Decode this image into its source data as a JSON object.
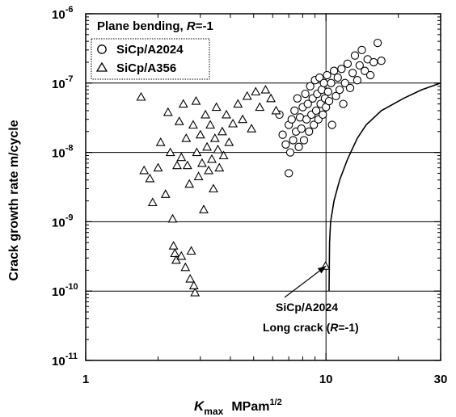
{
  "chart_data": {
    "type": "scatter",
    "legend_title_prefix": "Plane bending, ",
    "legend_title_var": "R",
    "legend_title_suffix": "=-1",
    "legend_placement": "top-left",
    "xlabel_var": "K",
    "xlabel_sub": "max",
    "xlabel_units": "MPam",
    "xlabel_exp": "1/2",
    "ylabel": "Crack growth rate  m/cycle",
    "x_scale": "log",
    "y_scale": "log",
    "xlim": [
      1,
      30
    ],
    "ylim": [
      1e-11,
      1e-06
    ],
    "x_ticks": [
      {
        "value": 1,
        "label": "1"
      },
      {
        "value": 10,
        "label": "10"
      },
      {
        "value": 30,
        "label": "30"
      }
    ],
    "y_ticks": [
      {
        "value": 1e-11,
        "base": "10",
        "exp": "-11"
      },
      {
        "value": 1e-10,
        "base": "10",
        "exp": "-10"
      },
      {
        "value": 1e-09,
        "base": "10",
        "exp": "-9"
      },
      {
        "value": 1e-08,
        "base": "10",
        "exp": "-8"
      },
      {
        "value": 1e-07,
        "base": "10",
        "exp": "-7"
      },
      {
        "value": 1e-06,
        "base": "10",
        "exp": "-6"
      }
    ],
    "grid": {
      "horizontal_at": [
        1e-10,
        1e-09,
        1e-08,
        1e-07
      ],
      "vertical_at": [
        10
      ]
    },
    "series": [
      {
        "name": "SiCp/A2024",
        "marker": "circle",
        "points": [
          [
            6.4,
            3.5e-08
          ],
          [
            6.6,
            1.8e-08
          ],
          [
            6.8,
            1.3e-08
          ],
          [
            7.0,
            2.5e-08
          ],
          [
            7.0,
            5e-09
          ],
          [
            7.1,
            1e-08
          ],
          [
            7.2,
            3e-08
          ],
          [
            7.3,
            1.5e-08
          ],
          [
            7.4,
            4e-08
          ],
          [
            7.5,
            2e-08
          ],
          [
            7.6,
            6e-08
          ],
          [
            7.7,
            1.2e-08
          ],
          [
            7.8,
            3.2e-08
          ],
          [
            7.9,
            2.2e-08
          ],
          [
            8.0,
            4.5e-08
          ],
          [
            8.1,
            1.5e-08
          ],
          [
            8.2,
            7e-08
          ],
          [
            8.3,
            3e-08
          ],
          [
            8.4,
            5e-08
          ],
          [
            8.5,
            2e-08
          ],
          [
            8.6,
            9e-08
          ],
          [
            8.7,
            3.5e-08
          ],
          [
            8.8,
            6e-08
          ],
          [
            8.9,
            2.5e-08
          ],
          [
            9.0,
            1.1e-07
          ],
          [
            9.1,
            4e-08
          ],
          [
            9.2,
            7e-08
          ],
          [
            9.3,
            3e-08
          ],
          [
            9.4,
            1.2e-07
          ],
          [
            9.5,
            5e-08
          ],
          [
            9.6,
            8e-08
          ],
          [
            9.7,
            3.5e-08
          ],
          [
            9.8,
            1e-07
          ],
          [
            9.9,
            6e-08
          ],
          [
            10.0,
            4.5e-08
          ],
          [
            10.1,
            1.3e-07
          ],
          [
            10.2,
            7.5e-08
          ],
          [
            10.3,
            5.5e-08
          ],
          [
            10.5,
            1e-07
          ],
          [
            10.6,
            2.5e-08
          ],
          [
            10.8,
            1.5e-07
          ],
          [
            11.0,
            6.5e-08
          ],
          [
            11.2,
            1.2e-07
          ],
          [
            11.4,
            8e-08
          ],
          [
            11.6,
            1.6e-07
          ],
          [
            11.8,
            5e-08
          ],
          [
            12.0,
            1e-07
          ],
          [
            12.3,
            1.9e-07
          ],
          [
            12.6,
            8.5e-08
          ],
          [
            12.9,
            1.4e-07
          ],
          [
            13.2,
            2.5e-07
          ],
          [
            13.5,
            1.1e-07
          ],
          [
            13.8,
            1.8e-07
          ],
          [
            14.1,
            3e-07
          ],
          [
            14.5,
            1.5e-07
          ],
          [
            14.9,
            2.2e-07
          ],
          [
            15.3,
            1.3e-07
          ],
          [
            15.8,
            2e-07
          ],
          [
            16.4,
            3.8e-07
          ],
          [
            17.0,
            2.1e-07
          ]
        ]
      },
      {
        "name": "SiCp/A356",
        "marker": "triangle",
        "points": [
          [
            1.7,
            6.3e-08
          ],
          [
            1.75,
            5.5e-09
          ],
          [
            1.85,
            4.2e-09
          ],
          [
            1.9,
            1.9e-09
          ],
          [
            2.0,
            6e-09
          ],
          [
            2.05,
            1.4e-08
          ],
          [
            2.15,
            2.5e-09
          ],
          [
            2.2,
            3.8e-08
          ],
          [
            2.25,
            1e-08
          ],
          [
            2.3,
            1.1e-09
          ],
          [
            2.32,
            4.5e-10
          ],
          [
            2.35,
            3.5e-10
          ],
          [
            2.38,
            2.8e-10
          ],
          [
            2.4,
            6.5e-09
          ],
          [
            2.45,
            2.8e-08
          ],
          [
            2.5,
            3.2e-10
          ],
          [
            2.5,
            8.5e-09
          ],
          [
            2.55,
            5e-08
          ],
          [
            2.6,
            2.2e-10
          ],
          [
            2.62,
            1.6e-08
          ],
          [
            2.65,
            6.5e-09
          ],
          [
            2.7,
            3.5e-09
          ],
          [
            2.72,
            1.5e-10
          ],
          [
            2.75,
            3.8e-10
          ],
          [
            2.8,
            2.5e-08
          ],
          [
            2.82,
            1.2e-10
          ],
          [
            2.85,
            9.5e-11
          ],
          [
            2.88,
            5.5e-08
          ],
          [
            2.9,
            1e-08
          ],
          [
            2.95,
            4.5e-09
          ],
          [
            3.0,
            1.8e-08
          ],
          [
            3.05,
            7e-09
          ],
          [
            3.1,
            1.5e-09
          ],
          [
            3.15,
            3.5e-08
          ],
          [
            3.2,
            1.2e-08
          ],
          [
            3.25,
            5.5e-09
          ],
          [
            3.3,
            2.5e-08
          ],
          [
            3.35,
            8e-09
          ],
          [
            3.4,
            3e-09
          ],
          [
            3.45,
            1.6e-08
          ],
          [
            3.5,
            4.5e-08
          ],
          [
            3.55,
            1.1e-08
          ],
          [
            3.6,
            6e-09
          ],
          [
            3.7,
            2e-08
          ],
          [
            3.75,
            9e-09
          ],
          [
            3.85,
            3.5e-08
          ],
          [
            3.95,
            1.4e-08
          ],
          [
            4.1,
            2.6e-08
          ],
          [
            4.3,
            5e-08
          ],
          [
            4.5,
            3e-08
          ],
          [
            4.7,
            6.5e-08
          ],
          [
            4.9,
            2.2e-08
          ],
          [
            5.1,
            7.5e-08
          ],
          [
            5.3,
            4.5e-08
          ],
          [
            5.6,
            8e-08
          ],
          [
            5.9,
            6e-08
          ],
          [
            6.2,
            4e-08
          ],
          [
            9.95,
            2.3e-10
          ]
        ]
      },
      {
        "name": "SiCp/A2024 Long crack",
        "marker": "line",
        "points": [
          [
            10.3,
            1e-10
          ],
          [
            10.35,
            5e-10
          ],
          [
            10.45,
            1e-09
          ],
          [
            10.8,
            2e-09
          ],
          [
            11.4,
            4e-09
          ],
          [
            12.3,
            8e-09
          ],
          [
            13.5,
            1.6e-08
          ],
          [
            14.7,
            2.5e-08
          ],
          [
            17.0,
            4e-08
          ],
          [
            21.0,
            6e-08
          ],
          [
            25.0,
            8e-08
          ],
          [
            30.0,
            1e-07
          ]
        ]
      }
    ],
    "annotation": {
      "line1": "SiCp/A2024",
      "line2_prefix": "Long crack (",
      "line2_var": "R",
      "line2_suffix": "=-1)",
      "points_to": [
        10.0,
        2.3e-10
      ]
    }
  }
}
